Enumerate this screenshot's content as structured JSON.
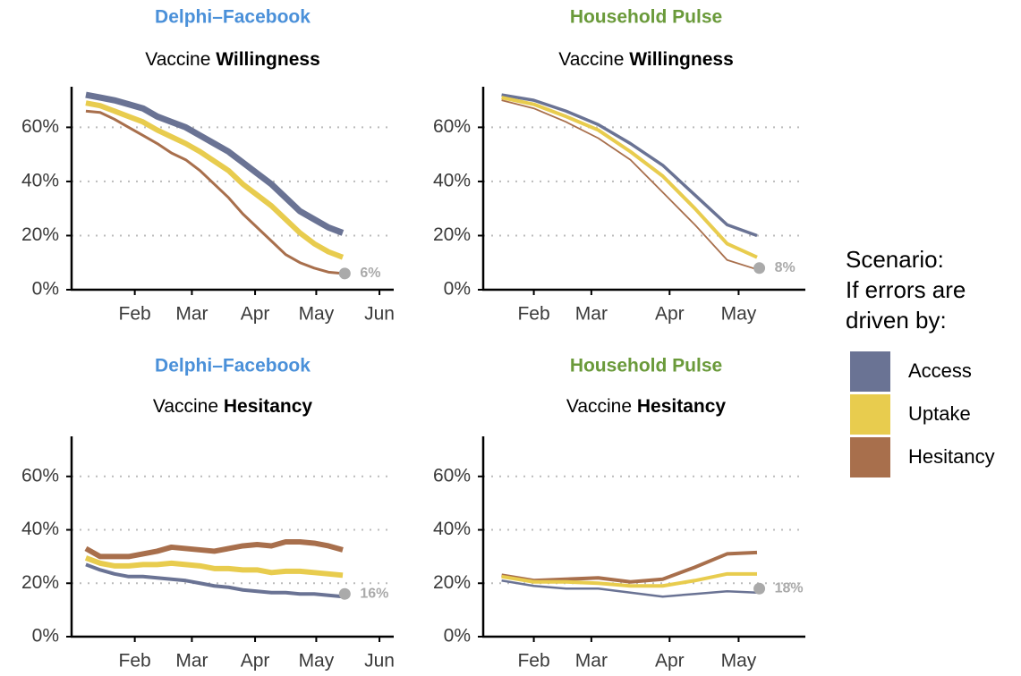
{
  "chart_data": [
    {
      "type": "line",
      "title": "Delphi–Facebook",
      "title_color": "#4a90d9",
      "subtitle": {
        "text": "Vaccine",
        "bold": "Willingness"
      },
      "x": [
        8,
        15,
        22,
        29,
        36,
        43,
        50,
        57,
        64,
        71,
        78,
        85,
        92,
        99,
        106,
        113,
        120,
        127,
        134
      ],
      "xlim": [
        1,
        159
      ],
      "xticks": [
        {
          "value": 32,
          "label": "Feb"
        },
        {
          "value": 60,
          "label": "Mar"
        },
        {
          "value": 91,
          "label": "Apr"
        },
        {
          "value": 121,
          "label": "May"
        },
        {
          "value": 152,
          "label": "Jun"
        }
      ],
      "ylim": [
        0,
        75
      ],
      "yticks": [
        {
          "value": 0,
          "label": "0%"
        },
        {
          "value": 20,
          "label": "20%"
        },
        {
          "value": 40,
          "label": "40%"
        },
        {
          "value": 60,
          "label": "60%"
        }
      ],
      "grid": true,
      "series": [
        {
          "color": "#6a7394",
          "values": [
            72,
            71,
            70,
            68.5,
            67,
            64,
            62,
            60,
            57,
            54,
            51,
            47,
            43,
            39,
            34,
            29,
            26,
            23,
            21
          ]
        },
        {
          "color": "#e8cc4e",
          "values": [
            69,
            68,
            66,
            64,
            62,
            59,
            56.5,
            54,
            51,
            47.5,
            44,
            39,
            35,
            31,
            26,
            21,
            17,
            14,
            12
          ]
        },
        {
          "color": "#a86f4c",
          "values": [
            66,
            65.5,
            63,
            60,
            57,
            54,
            50.5,
            48,
            44,
            39,
            34,
            28,
            23,
            18,
            13,
            10,
            8,
            6.5,
            6
          ]
        }
      ],
      "annotation": {
        "x": 135,
        "value": 6,
        "label": "6%"
      }
    },
    {
      "type": "line",
      "title": "Household Pulse",
      "title_color": "#6a9a3a",
      "subtitle": {
        "text": "Vaccine",
        "bold": "Willingness"
      },
      "x": [
        18,
        32,
        46,
        60,
        74,
        88,
        102,
        116,
        129
      ],
      "xlim": [
        10,
        150
      ],
      "xticks": [
        {
          "value": 32,
          "label": "Feb"
        },
        {
          "value": 57,
          "label": "Mar"
        },
        {
          "value": 91,
          "label": "Apr"
        },
        {
          "value": 121,
          "label": "May"
        }
      ],
      "ylim": [
        0,
        75
      ],
      "yticks": [
        {
          "value": 0,
          "label": "0%"
        },
        {
          "value": 20,
          "label": "20%"
        },
        {
          "value": 40,
          "label": "40%"
        },
        {
          "value": 60,
          "label": "60%"
        }
      ],
      "grid": true,
      "series": [
        {
          "color": "#6a7394",
          "values": [
            72,
            70,
            66,
            61,
            54,
            46,
            35,
            24,
            20
          ]
        },
        {
          "color": "#e8cc4e",
          "values": [
            71,
            68.5,
            64,
            59,
            51,
            42,
            30,
            17,
            12
          ]
        },
        {
          "color": "#a86f4c",
          "values": [
            70,
            67,
            62,
            56,
            48,
            36,
            24,
            11,
            7.5
          ]
        }
      ],
      "annotation": {
        "x": 130,
        "value": 8,
        "label": "8%"
      }
    },
    {
      "type": "line",
      "title": "Delphi–Facebook",
      "title_color": "#4a90d9",
      "subtitle": {
        "text": "Vaccine",
        "bold": "Hesitancy"
      },
      "x": [
        8,
        15,
        22,
        29,
        36,
        43,
        50,
        57,
        64,
        71,
        78,
        85,
        92,
        99,
        106,
        113,
        120,
        127,
        134
      ],
      "xlim": [
        1,
        159
      ],
      "xticks": [
        {
          "value": 32,
          "label": "Feb"
        },
        {
          "value": 60,
          "label": "Mar"
        },
        {
          "value": 91,
          "label": "Apr"
        },
        {
          "value": 121,
          "label": "May"
        },
        {
          "value": 152,
          "label": "Jun"
        }
      ],
      "ylim": [
        0,
        75
      ],
      "yticks": [
        {
          "value": 0,
          "label": "0%"
        },
        {
          "value": 20,
          "label": "20%"
        },
        {
          "value": 40,
          "label": "40%"
        },
        {
          "value": 60,
          "label": "60%"
        }
      ],
      "grid": true,
      "series": [
        {
          "color": "#a86f4c",
          "values": [
            33,
            30,
            30,
            30,
            31,
            32,
            33.5,
            33,
            32.5,
            32,
            33,
            34,
            34.5,
            34,
            35.5,
            35.5,
            35,
            34,
            32.5
          ]
        },
        {
          "color": "#e8cc4e",
          "values": [
            29.5,
            27.5,
            26.5,
            26.5,
            27,
            27,
            27.5,
            27,
            26.5,
            25.5,
            25.5,
            25,
            25,
            24,
            24.5,
            24.5,
            24,
            23.5,
            23
          ]
        },
        {
          "color": "#6a7394",
          "values": [
            27,
            25,
            23.5,
            22.5,
            22.5,
            22,
            21.5,
            21,
            20,
            19,
            18.5,
            17.5,
            17,
            16.5,
            16.5,
            16,
            16,
            15.5,
            15
          ]
        }
      ],
      "annotation": {
        "x": 135,
        "value": 16,
        "label": "16%"
      }
    },
    {
      "type": "line",
      "title": "Household Pulse",
      "title_color": "#6a9a3a",
      "subtitle": {
        "text": "Vaccine",
        "bold": "Hesitancy"
      },
      "x": [
        18,
        32,
        46,
        60,
        74,
        88,
        102,
        116,
        129
      ],
      "xlim": [
        10,
        150
      ],
      "xticks": [
        {
          "value": 32,
          "label": "Feb"
        },
        {
          "value": 57,
          "label": "Mar"
        },
        {
          "value": 91,
          "label": "Apr"
        },
        {
          "value": 121,
          "label": "May"
        }
      ],
      "ylim": [
        0,
        75
      ],
      "yticks": [
        {
          "value": 0,
          "label": "0%"
        },
        {
          "value": 20,
          "label": "20%"
        },
        {
          "value": 40,
          "label": "40%"
        },
        {
          "value": 60,
          "label": "60%"
        }
      ],
      "grid": true,
      "series": [
        {
          "color": "#a86f4c",
          "values": [
            23,
            21,
            21.5,
            22,
            20.5,
            21.5,
            26,
            31,
            31.5
          ]
        },
        {
          "color": "#e8cc4e",
          "values": [
            22.5,
            20.5,
            20.5,
            20,
            19,
            19,
            21,
            23.5,
            23.5
          ]
        },
        {
          "color": "#6a7394",
          "values": [
            21,
            19,
            18,
            18,
            16.5,
            15,
            16,
            17,
            16.5
          ]
        }
      ],
      "annotation": {
        "x": 130,
        "value": 18,
        "label": "18%"
      }
    }
  ],
  "legend": {
    "title": [
      "Scenario:",
      "If errors are",
      "driven by:"
    ],
    "entries": [
      {
        "name": "Access",
        "color": "#6a7394"
      },
      {
        "name": "Uptake",
        "color": "#e8cc4e"
      },
      {
        "name": "Hesitancy",
        "color": "#a86f4c"
      }
    ]
  }
}
